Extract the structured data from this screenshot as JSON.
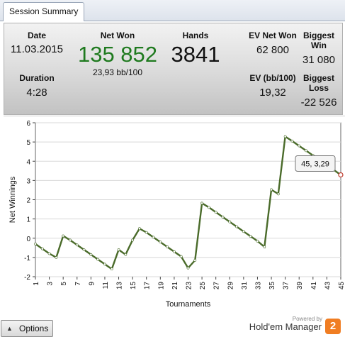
{
  "tab": {
    "label": "Session Summary"
  },
  "summary": {
    "date_label": "Date",
    "date_value": "11.03.2015",
    "duration_label": "Duration",
    "duration_value": "4:28",
    "net_won_label": "Net Won",
    "net_won_value": "135 852",
    "net_won_rate": "23,93 bb/100",
    "hands_label": "Hands",
    "hands_value": "3841",
    "ev_net_won_label": "EV Net Won",
    "ev_net_won_value": "62 800",
    "ev_bb_label": "EV (bb/100)",
    "ev_bb_value": "19,32",
    "biggest_win_label": "Biggest Win",
    "biggest_win_value": "31 080",
    "biggest_loss_label": "Biggest Loss",
    "biggest_loss_value": "-22 526",
    "colors": {
      "net_won": "#1f7a1f"
    }
  },
  "chart_data": {
    "type": "line",
    "xlabel": "Tournaments",
    "ylabel": "Net Winnings",
    "xlim": [
      1,
      45
    ],
    "ylim": [
      -2,
      6
    ],
    "y_ticks": [
      "-2",
      "-1",
      "0",
      "1",
      "2",
      "3",
      "4",
      "5",
      "6"
    ],
    "x_ticks": [
      "1",
      "3",
      "5",
      "7",
      "9",
      "11",
      "13",
      "15",
      "17",
      "19",
      "21",
      "23",
      "25",
      "27",
      "29",
      "31",
      "33",
      "35",
      "37",
      "39",
      "41",
      "43",
      "45"
    ],
    "grid": true,
    "line_color": "#4a6b2a",
    "tooltip": {
      "x": 45,
      "y": 3.29,
      "label": "45, 3,29"
    },
    "series": [
      {
        "x": [
          1,
          2,
          3,
          4,
          5,
          6,
          7,
          8,
          9,
          10,
          11,
          12,
          13,
          14,
          15,
          16,
          17,
          18,
          19,
          20,
          21,
          22,
          23,
          24,
          25,
          26,
          27,
          28,
          29,
          30,
          31,
          32,
          33,
          34,
          35,
          36,
          37,
          38,
          39,
          40,
          41,
          42,
          43,
          44,
          45
        ],
        "values": [
          -0.3,
          -0.55,
          -0.8,
          -1.0,
          0.12,
          -0.1,
          -0.35,
          -0.6,
          -0.85,
          -1.1,
          -1.35,
          -1.6,
          -0.6,
          -0.85,
          -0.1,
          0.5,
          0.3,
          0.05,
          -0.2,
          -0.45,
          -0.7,
          -0.95,
          -1.55,
          -1.15,
          1.82,
          1.6,
          1.35,
          1.1,
          0.85,
          0.6,
          0.35,
          0.1,
          -0.15,
          -0.45,
          2.52,
          2.3,
          5.28,
          5.05,
          4.8,
          4.55,
          4.3,
          4.05,
          3.8,
          3.55,
          3.29
        ]
      }
    ]
  },
  "footer": {
    "options_label": "Options",
    "powered_by": "Powered by",
    "brand_name": "Hold'em Manager",
    "brand_logo": "2"
  }
}
